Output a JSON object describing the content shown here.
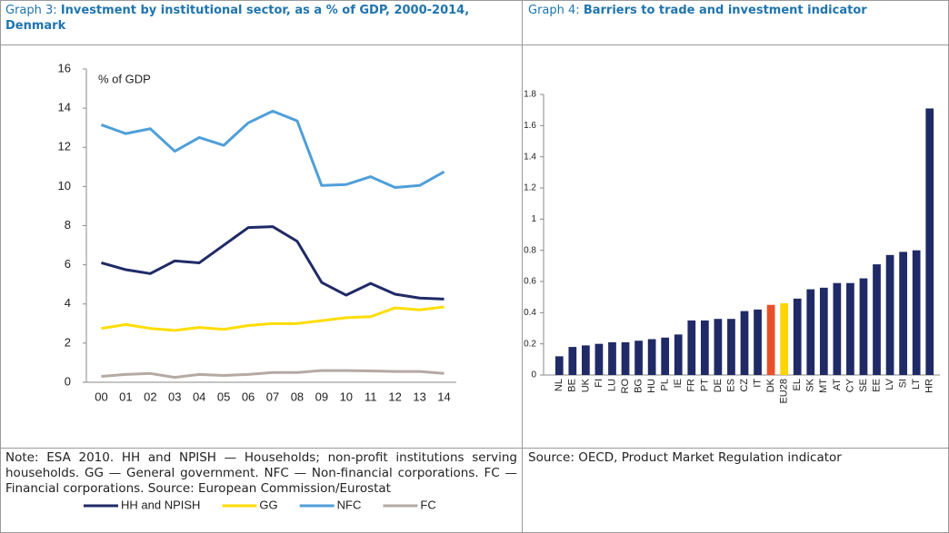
{
  "chart_data": [
    {
      "type": "line",
      "label": "Graph 3:",
      "title": "Investment by institutional sector, as a % of GDP, 2000-2014, Denmark",
      "y_label": "% of GDP",
      "categories": [
        "00",
        "01",
        "02",
        "03",
        "04",
        "05",
        "06",
        "07",
        "08",
        "09",
        "10",
        "11",
        "12",
        "13",
        "14"
      ],
      "series": [
        {
          "name": "HH and NPISH",
          "color": "#1f2a66",
          "values": [
            6.1,
            5.75,
            5.55,
            6.2,
            6.1,
            7.0,
            7.9,
            7.95,
            7.2,
            5.1,
            4.45,
            5.05,
            4.5,
            4.3,
            4.25
          ]
        },
        {
          "name": "GG",
          "color": "#ffdd00",
          "values": [
            2.75,
            2.95,
            2.75,
            2.65,
            2.8,
            2.7,
            2.9,
            3.0,
            3.0,
            3.15,
            3.3,
            3.35,
            3.8,
            3.7,
            3.85
          ]
        },
        {
          "name": "NFC",
          "color": "#4f9fd9",
          "values": [
            13.15,
            12.7,
            12.95,
            11.8,
            12.5,
            12.1,
            13.25,
            13.85,
            13.35,
            10.05,
            10.1,
            10.5,
            9.95,
            10.05,
            10.75
          ]
        },
        {
          "name": "FC",
          "color": "#b5a9a3",
          "values": [
            0.3,
            0.4,
            0.45,
            0.25,
            0.4,
            0.35,
            0.4,
            0.5,
            0.5,
            0.6,
            0.6,
            0.58,
            0.55,
            0.55,
            0.45
          ]
        }
      ],
      "ylim": [
        0,
        16
      ],
      "yticks": [
        0,
        2,
        4,
        6,
        8,
        10,
        12,
        14,
        16
      ],
      "legend": "bottom",
      "note": "Note: ESA 2010. HH and NPISH — Households; non-profit institutions serving households. GG — General government. NFC — Non-financial corporations. FC — Financial corporations. Source: European Commission/Eurostat"
    },
    {
      "type": "bar",
      "label": "Graph 4:",
      "title": "Barriers to trade and investment indicator",
      "categories": [
        "NL",
        "BE",
        "UK",
        "FI",
        "LU",
        "RO",
        "BG",
        "HU",
        "PL",
        "IE",
        "FR",
        "PT",
        "DE",
        "ES",
        "CZ",
        "IT",
        "DK",
        "EU28",
        "EL",
        "SK",
        "MT",
        "AT",
        "CY",
        "SE",
        "EE",
        "LV",
        "SI",
        "LT",
        "HR"
      ],
      "values": [
        0.12,
        0.18,
        0.19,
        0.2,
        0.21,
        0.21,
        0.22,
        0.23,
        0.24,
        0.26,
        0.35,
        0.35,
        0.36,
        0.36,
        0.41,
        0.42,
        0.45,
        0.46,
        0.49,
        0.55,
        0.56,
        0.59,
        0.59,
        0.62,
        0.71,
        0.77,
        0.79,
        0.8,
        1.71
      ],
      "color": "#1f2a66",
      "highlight_colors": {
        "DK": "#e8502a",
        "EU28": "#ffd400"
      },
      "ylim": [
        0,
        1.8
      ],
      "yticks": [
        0,
        0.2,
        0.4,
        0.6,
        0.8,
        1,
        1.2,
        1.4,
        1.6,
        1.8
      ],
      "note": "Source: OECD, Product Market Regulation indicator"
    }
  ]
}
